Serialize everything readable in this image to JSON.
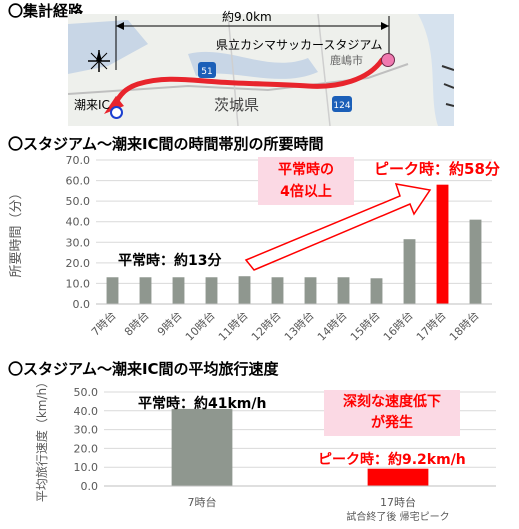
{
  "route": {
    "title": "〇集計経路",
    "distance_label": "約9.0km",
    "stadium_label": "県立カシマサッカースタジアム",
    "ic_label": "潮来IC",
    "prefecture_label": "茨城県",
    "city_label": "鹿嶋市",
    "route_51": "51",
    "route_124": "124",
    "route_color": "#e8242c"
  },
  "chart_data": [
    {
      "type": "bar",
      "title": "〇スタジアム～潮来IC間の時間帯別の所要時間",
      "ylabel": "所要時間（分）",
      "categories": [
        "7時台",
        "8時台",
        "9時台",
        "10時台",
        "11時台",
        "12時台",
        "13時台",
        "14時台",
        "15時台",
        "16時台",
        "17時台",
        "18時台"
      ],
      "values": [
        13,
        13,
        13,
        13,
        13.5,
        13,
        13,
        13,
        12.5,
        31.5,
        58,
        41
      ],
      "colors": [
        "#8f978f",
        "#8f978f",
        "#8f978f",
        "#8f978f",
        "#8f978f",
        "#8f978f",
        "#8f978f",
        "#8f978f",
        "#8f978f",
        "#8f978f",
        "#ff0000",
        "#8f978f"
      ],
      "ylim": [
        0,
        70
      ],
      "yticks": [
        "0.0",
        "10.0",
        "20.0",
        "30.0",
        "40.0",
        "50.0",
        "60.0",
        "70.0"
      ],
      "grid": true,
      "annotations": {
        "normal": "平常時：約13分",
        "peak": "ピーク時：約58分",
        "ratio_line1": "平常時の",
        "ratio_line2": "4倍以上"
      }
    },
    {
      "type": "bar",
      "title": "〇スタジアム～潮来IC間の平均旅行速度",
      "ylabel": "平均旅行速度（km/h）",
      "categories": [
        "7時台",
        "17時台"
      ],
      "category_sublabels": [
        "",
        "試合終了後  帰宅ピーク"
      ],
      "values": [
        41,
        9.2
      ],
      "colors": [
        "#8f978f",
        "#ff0000"
      ],
      "ylim": [
        0,
        50
      ],
      "yticks": [
        "0.0",
        "10.0",
        "20.0",
        "30.0",
        "40.0",
        "50.0"
      ],
      "grid": true,
      "annotations": {
        "normal": "平常時：約41km/h",
        "peak": "ピーク時：約9.2km/h",
        "drop_line1": "深刻な速度低下",
        "drop_line2": "が発生"
      }
    }
  ]
}
